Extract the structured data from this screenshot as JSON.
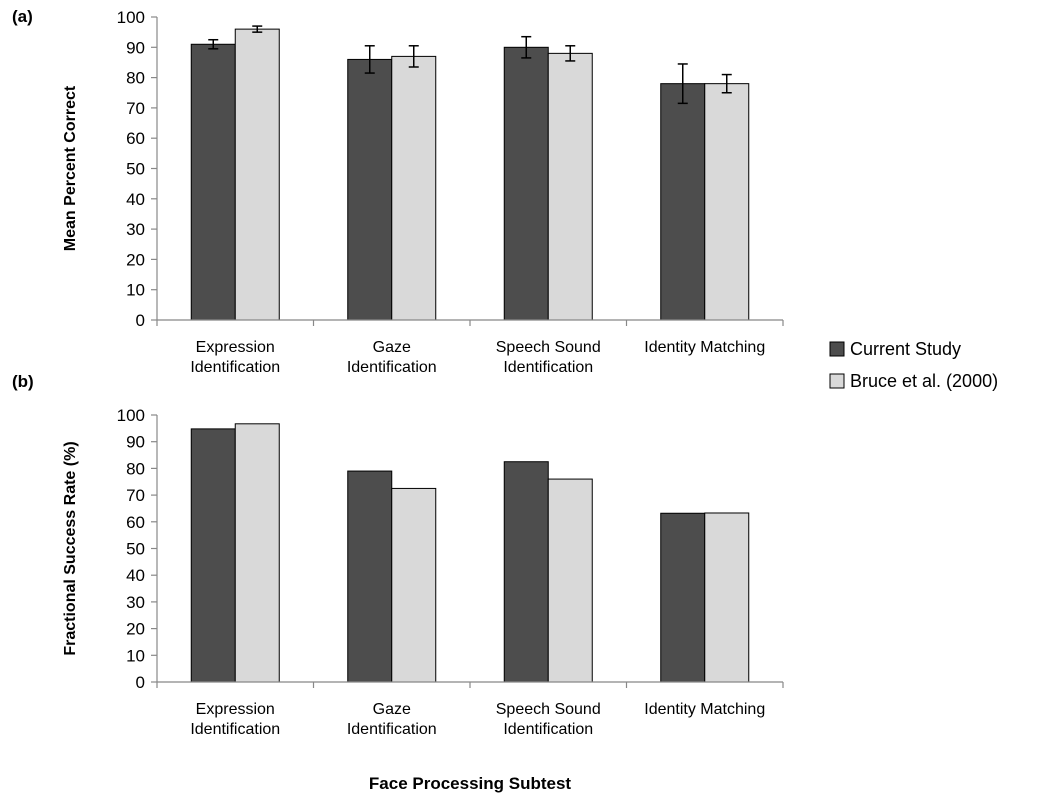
{
  "xlabel": "Face Processing Subtest",
  "legend": [
    {
      "label": "Current Study",
      "color": "#4d4d4d"
    },
    {
      "label": "Bruce et al. (2000)",
      "color": "#d9d9d9"
    }
  ],
  "chart_data": [
    {
      "type": "bar",
      "panel_label": "(a)",
      "ylabel": "Mean Percent Correct",
      "ylim": [
        0,
        100
      ],
      "yticks": [
        0,
        10,
        20,
        30,
        40,
        50,
        60,
        70,
        80,
        90,
        100
      ],
      "categories": [
        [
          "Expression",
          "Identification"
        ],
        [
          "Gaze",
          "Identification"
        ],
        [
          "Speech Sound",
          "Identification"
        ],
        [
          "Identity Matching"
        ]
      ],
      "series": [
        {
          "name": "Current Study",
          "values": [
            91,
            86,
            90,
            78
          ],
          "errors": [
            1.5,
            4.5,
            3.5,
            6.5
          ],
          "color": "#4d4d4d"
        },
        {
          "name": "Bruce et al. (2000)",
          "values": [
            96,
            87,
            88,
            78
          ],
          "errors": [
            1,
            3.5,
            2.5,
            3
          ],
          "color": "#d9d9d9"
        }
      ]
    },
    {
      "type": "bar",
      "panel_label": "(b)",
      "ylabel": "Fractional Success Rate (%)",
      "ylim": [
        0,
        100
      ],
      "yticks": [
        0,
        10,
        20,
        30,
        40,
        50,
        60,
        70,
        80,
        90,
        100
      ],
      "categories": [
        [
          "Expression",
          "Identification"
        ],
        [
          "Gaze",
          "Identification"
        ],
        [
          "Speech Sound",
          "Identification"
        ],
        [
          "Identity Matching"
        ]
      ],
      "series": [
        {
          "name": "Current Study",
          "values": [
            94.8,
            79,
            82.5,
            63.2
          ],
          "color": "#4d4d4d"
        },
        {
          "name": "Bruce et al. (2000)",
          "values": [
            96.7,
            72.5,
            76,
            63.3
          ],
          "color": "#d9d9d9"
        }
      ]
    }
  ]
}
